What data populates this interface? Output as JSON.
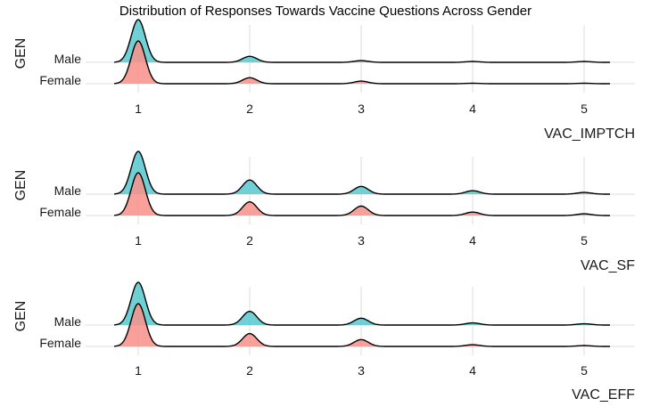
{
  "chart_data": {
    "type": "ridgeline",
    "title": "Distribution of Responses Towards Vaccine Questions Across Gender",
    "grid": true,
    "legend": "none",
    "colors": {
      "Male": "#5BCBD0",
      "Female": "#F8938C"
    },
    "panels": [
      {
        "xlabel": "VAC_IMPTCH",
        "ylabel": "GEN",
        "categories": [
          "Male",
          "Female"
        ],
        "xticks": [
          1,
          2,
          3,
          4,
          5
        ],
        "xlim": [
          0.8,
          5.2
        ],
        "series": [
          {
            "name": "Male",
            "x": [
              1,
              2,
              3,
              4,
              5
            ],
            "density": [
              1.0,
              0.14,
              0.04,
              0.02,
              0.02
            ]
          },
          {
            "name": "Female",
            "x": [
              1,
              2,
              3,
              4,
              5
            ],
            "density": [
              1.0,
              0.14,
              0.06,
              0.01,
              0.01
            ]
          }
        ]
      },
      {
        "xlabel": "VAC_SF",
        "ylabel": "GEN",
        "categories": [
          "Male",
          "Female"
        ],
        "xticks": [
          1,
          2,
          3,
          4,
          5
        ],
        "xlim": [
          0.8,
          5.2
        ],
        "series": [
          {
            "name": "Male",
            "x": [
              1,
              2,
              3,
              4,
              5
            ],
            "density": [
              1.0,
              0.33,
              0.18,
              0.08,
              0.04
            ]
          },
          {
            "name": "Female",
            "x": [
              1,
              2,
              3,
              4,
              5
            ],
            "density": [
              1.0,
              0.32,
              0.22,
              0.08,
              0.04
            ]
          }
        ]
      },
      {
        "xlabel": "VAC_EFF",
        "ylabel": "GEN",
        "categories": [
          "Male",
          "Female"
        ],
        "xticks": [
          1,
          2,
          3,
          4,
          5
        ],
        "xlim": [
          0.8,
          5.2
        ],
        "series": [
          {
            "name": "Male",
            "x": [
              1,
              2,
              3,
              4,
              5
            ],
            "density": [
              1.0,
              0.32,
              0.16,
              0.05,
              0.03
            ]
          },
          {
            "name": "Female",
            "x": [
              1,
              2,
              3,
              4,
              5
            ],
            "density": [
              1.0,
              0.3,
              0.16,
              0.04,
              0.02
            ]
          }
        ]
      }
    ]
  }
}
